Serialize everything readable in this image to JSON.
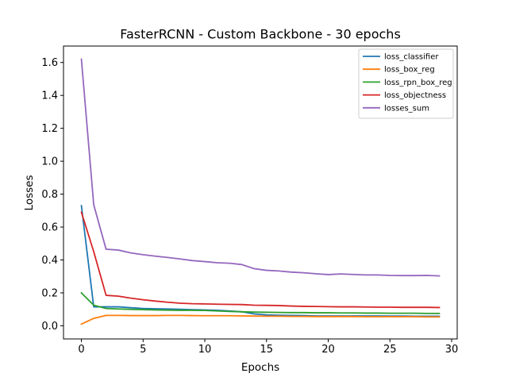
{
  "chart_data": {
    "type": "line",
    "title": "FasterRCNN - Custom Backbone - 30 epochs",
    "xlabel": "Epochs",
    "ylabel": "Losses",
    "xlim": [
      -1.45,
      30.45
    ],
    "ylim": [
      -0.08,
      1.7
    ],
    "x_ticks": [
      0,
      5,
      10,
      15,
      20,
      25,
      30
    ],
    "y_ticks": [
      0.0,
      0.2,
      0.4,
      0.6,
      0.8,
      1.0,
      1.2,
      1.4,
      1.6
    ],
    "grid": false,
    "legend_position": "top-right",
    "x": [
      0,
      1,
      2,
      3,
      4,
      5,
      6,
      7,
      8,
      9,
      10,
      11,
      12,
      13,
      14,
      15,
      16,
      17,
      18,
      19,
      20,
      21,
      22,
      23,
      24,
      25,
      26,
      27,
      28,
      29
    ],
    "series": [
      {
        "name": "loss_classifier",
        "color": "#1f77b4",
        "values": [
          0.73,
          0.115,
          0.115,
          0.115,
          0.11,
          0.105,
          0.103,
          0.102,
          0.1,
          0.098,
          0.096,
          0.094,
          0.09,
          0.085,
          0.072,
          0.066,
          0.064,
          0.063,
          0.062,
          0.06,
          0.06,
          0.06,
          0.06,
          0.06,
          0.06,
          0.059,
          0.059,
          0.058,
          0.058,
          0.058
        ]
      },
      {
        "name": "loss_box_reg",
        "color": "#ff7f0e",
        "values": [
          0.01,
          0.045,
          0.063,
          0.063,
          0.062,
          0.062,
          0.062,
          0.063,
          0.063,
          0.062,
          0.061,
          0.061,
          0.061,
          0.06,
          0.059,
          0.058,
          0.058,
          0.057,
          0.057,
          0.056,
          0.056,
          0.056,
          0.056,
          0.055,
          0.055,
          0.055,
          0.055,
          0.055,
          0.054,
          0.054
        ]
      },
      {
        "name": "loss_rpn_box_reg",
        "color": "#2ca02c",
        "values": [
          0.2,
          0.125,
          0.105,
          0.102,
          0.1,
          0.098,
          0.096,
          0.095,
          0.094,
          0.094,
          0.093,
          0.09,
          0.087,
          0.085,
          0.083,
          0.082,
          0.081,
          0.08,
          0.08,
          0.079,
          0.079,
          0.078,
          0.078,
          0.077,
          0.077,
          0.076,
          0.076,
          0.076,
          0.075,
          0.075
        ]
      },
      {
        "name": "loss_objectness",
        "color": "#d62728",
        "values": [
          0.69,
          0.45,
          0.185,
          0.18,
          0.168,
          0.158,
          0.15,
          0.143,
          0.137,
          0.134,
          0.133,
          0.131,
          0.13,
          0.129,
          0.125,
          0.124,
          0.123,
          0.12,
          0.118,
          0.117,
          0.116,
          0.115,
          0.115,
          0.114,
          0.113,
          0.113,
          0.112,
          0.112,
          0.112,
          0.111
        ]
      },
      {
        "name": "losses_sum",
        "color": "#9467bd",
        "values": [
          1.62,
          0.735,
          0.465,
          0.46,
          0.443,
          0.432,
          0.423,
          0.415,
          0.406,
          0.396,
          0.39,
          0.383,
          0.38,
          0.372,
          0.347,
          0.337,
          0.333,
          0.326,
          0.322,
          0.316,
          0.311,
          0.315,
          0.312,
          0.309,
          0.309,
          0.306,
          0.305,
          0.305,
          0.306,
          0.303
        ]
      }
    ]
  }
}
